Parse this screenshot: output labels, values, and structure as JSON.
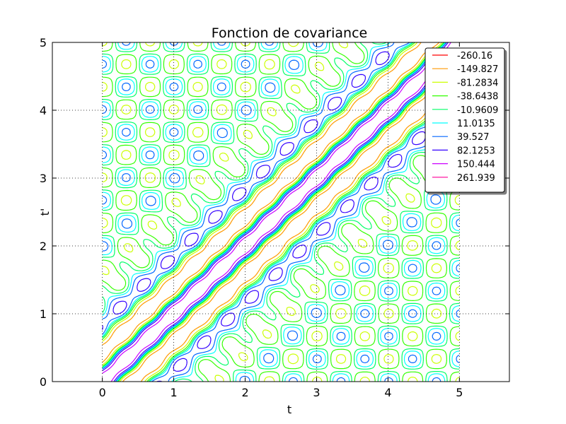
{
  "chart_data": {
    "type": "contour",
    "title": "Fonction de covariance",
    "xlabel": "t",
    "ylabel": "t'",
    "xlim": [
      -0.7,
      5.7
    ],
    "ylim": [
      0,
      5
    ],
    "data_x_range": [
      0,
      5
    ],
    "data_y_range": [
      0,
      5
    ],
    "x_ticks": [
      0,
      1,
      2,
      3,
      4,
      5
    ],
    "y_ticks": [
      0,
      1,
      2,
      3,
      4,
      5
    ],
    "x_tick_labels": [
      "0",
      "1",
      "2",
      "3",
      "4",
      "5"
    ],
    "y_tick_labels": [
      "0",
      "1",
      "2",
      "3",
      "4",
      "5"
    ],
    "grid": true,
    "legend_position": "top-right",
    "levels": [
      {
        "label": "-260.16",
        "value": -260.16,
        "color": "#ff0000"
      },
      {
        "label": "-149.827",
        "value": -149.827,
        "color": "#ff9900"
      },
      {
        "label": "-81.2834",
        "value": -81.2834,
        "color": "#ccff00"
      },
      {
        "label": "-38.6438",
        "value": -38.6438,
        "color": "#33ff00"
      },
      {
        "label": "-10.9609",
        "value": -10.9609,
        "color": "#00ff66"
      },
      {
        "label": "11.0135",
        "value": 11.0135,
        "color": "#00ffff"
      },
      {
        "label": "39.527",
        "value": 39.527,
        "color": "#0066ff"
      },
      {
        "label": "82.1253",
        "value": 82.1253,
        "color": "#3300ff"
      },
      {
        "label": "150.444",
        "value": 150.444,
        "color": "#cc00ff"
      },
      {
        "label": "261.939",
        "value": 261.939,
        "color": "#ff0099"
      }
    ]
  }
}
